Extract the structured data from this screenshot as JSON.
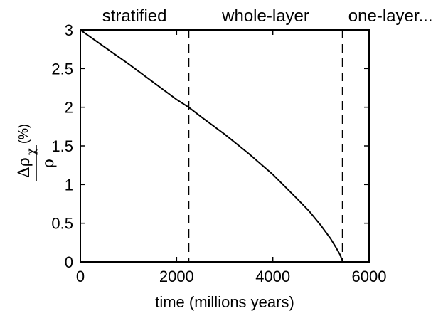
{
  "chart_data": {
    "type": "line",
    "xlabel": "time (millions years)",
    "ylabel": {
      "numerator": "Δρ",
      "subscript": "χ",
      "denominator": "ρ",
      "unit": "(%)"
    },
    "xlim": [
      0,
      6000
    ],
    "ylim": [
      0,
      3
    ],
    "x_ticks": [
      0,
      2000,
      4000,
      6000
    ],
    "y_ticks": [
      0,
      0.5,
      1,
      1.5,
      2,
      2.5,
      3
    ],
    "x_tick_labels": [
      "0",
      "2000",
      "4000",
      "6000"
    ],
    "y_tick_labels": [
      "0",
      "0.5",
      "1",
      "1.5",
      "2",
      "2.5",
      "3"
    ],
    "grid": false,
    "regions": [
      {
        "label": "stratified"
      },
      {
        "label": "whole-layer"
      },
      {
        "label": "one-layer..."
      }
    ],
    "vlines": [
      2250,
      5450
    ],
    "series": [
      {
        "x": [
          0,
          500,
          1000,
          1500,
          2000,
          2250,
          2500,
          3000,
          3500,
          4000,
          4500,
          4750,
          5000,
          5200,
          5300,
          5400,
          5450
        ],
        "y": [
          3.0,
          2.78,
          2.56,
          2.33,
          2.1,
          2.0,
          1.88,
          1.65,
          1.4,
          1.13,
          0.82,
          0.66,
          0.47,
          0.3,
          0.2,
          0.09,
          0.0
        ],
        "style": "solid"
      }
    ]
  }
}
